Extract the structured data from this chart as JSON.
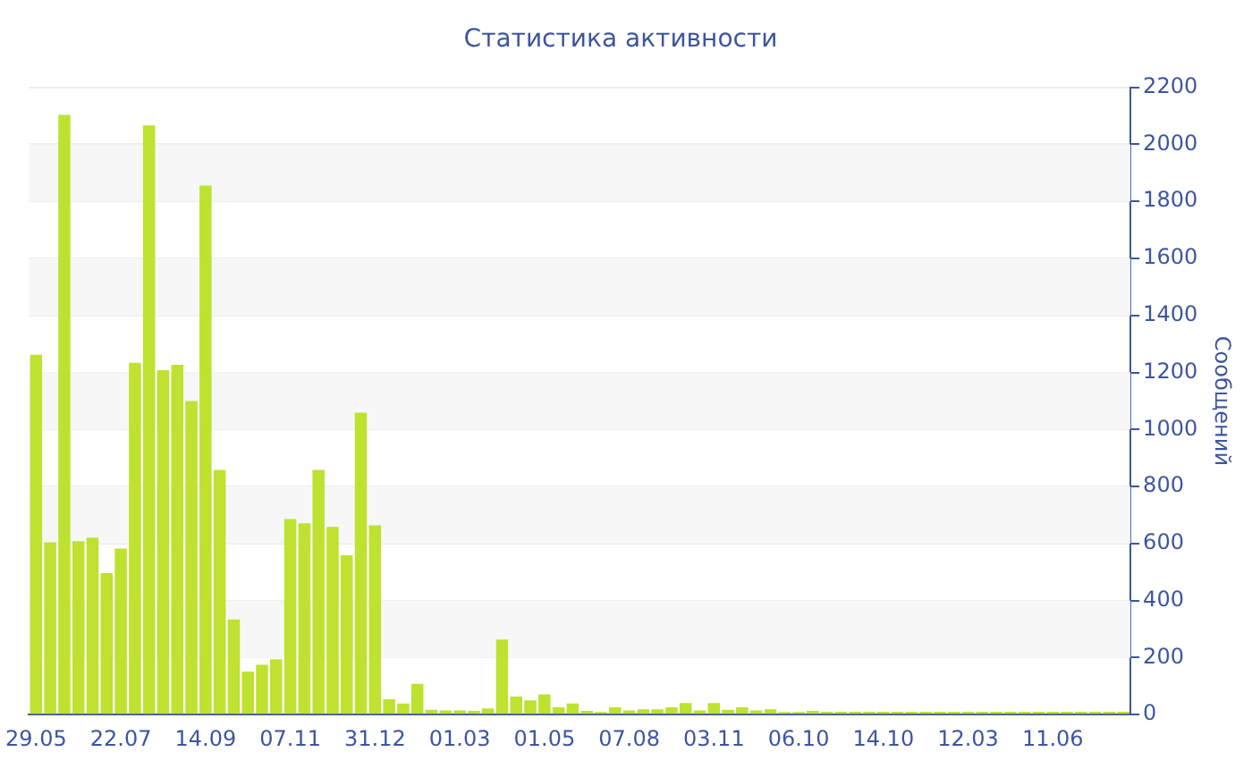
{
  "chart_data": {
    "type": "bar",
    "title": "Статистика активности",
    "ylabel": "Сообщений",
    "categories": [
      "29.05",
      null,
      null,
      null,
      null,
      null,
      "22.07",
      null,
      null,
      null,
      null,
      null,
      "14.09",
      null,
      null,
      null,
      null,
      null,
      "07.11",
      null,
      null,
      null,
      null,
      null,
      "31.12",
      null,
      null,
      null,
      null,
      null,
      "01.03",
      null,
      null,
      null,
      null,
      null,
      "01.05",
      null,
      null,
      null,
      null,
      null,
      "07.08",
      null,
      null,
      null,
      null,
      null,
      "03.11",
      null,
      null,
      null,
      null,
      null,
      "06.10",
      null,
      null,
      null,
      null,
      null,
      "14.10",
      null,
      null,
      null,
      null,
      null,
      "12.03",
      null,
      null,
      null,
      null,
      null,
      "11.06",
      null,
      null,
      null,
      null,
      null
    ],
    "values": [
      1262,
      604,
      2103,
      608,
      621,
      496,
      582,
      1234,
      2066,
      1208,
      1227,
      1100,
      1855,
      858,
      334,
      151,
      175,
      194,
      686,
      671,
      858,
      658,
      559,
      1059,
      664,
      54,
      39,
      108,
      17,
      15,
      15,
      13,
      22,
      263,
      63,
      50,
      71,
      26,
      39,
      13,
      9,
      26,
      15,
      19,
      19,
      26,
      41,
      15,
      41,
      17,
      26,
      15,
      19,
      9,
      9,
      13,
      10,
      10,
      10,
      10,
      10,
      10,
      10,
      10,
      10,
      10,
      10,
      10,
      10,
      10,
      10,
      10,
      10,
      10,
      10,
      10,
      10,
      10
    ],
    "color": "#bde22f",
    "ylim": [
      0,
      2200
    ],
    "yticks": [
      0,
      200,
      400,
      600,
      800,
      1000,
      1200,
      1400,
      1600,
      1800,
      2000,
      2200
    ],
    "grid": "y"
  }
}
